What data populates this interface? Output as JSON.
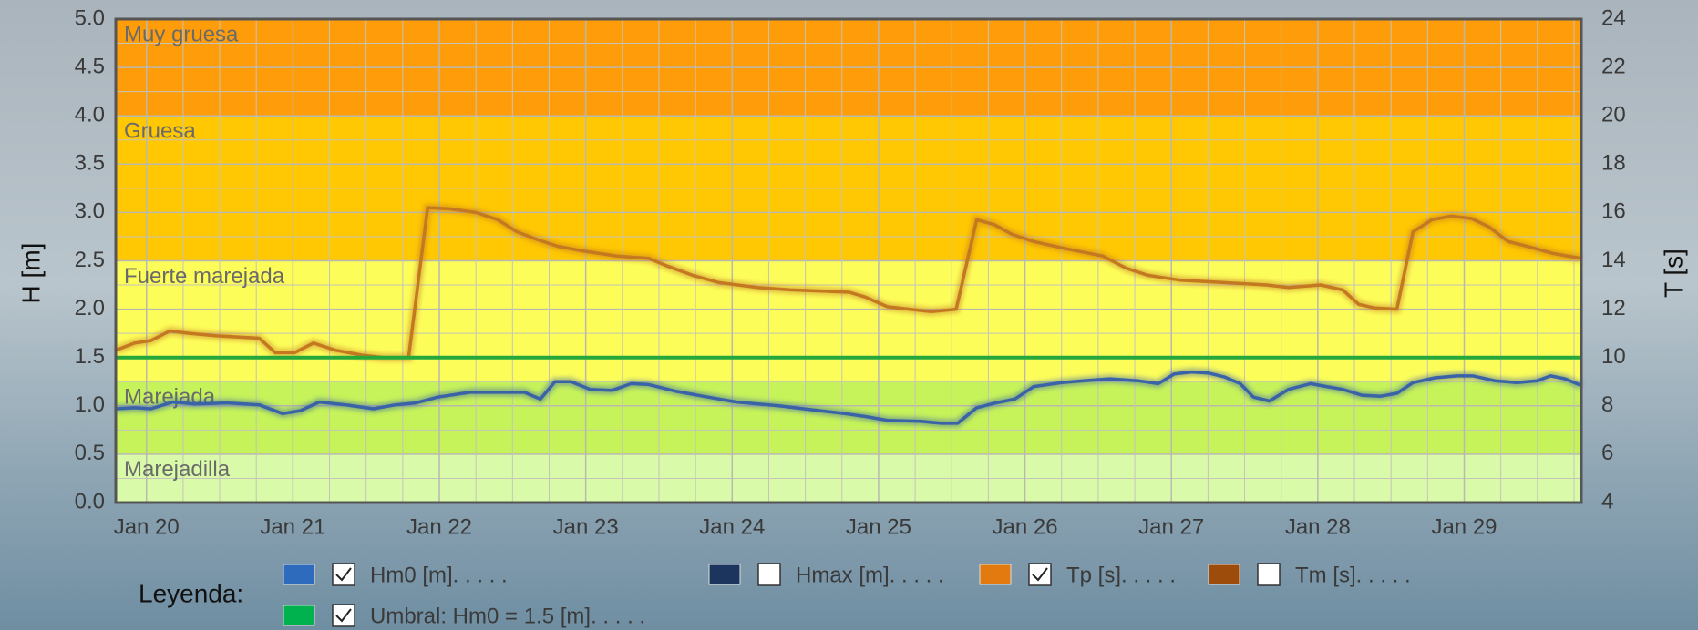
{
  "chart_data": {
    "type": "line",
    "ylabel": "H [m]",
    "y2label": "T [s]",
    "xlim": [
      19.79,
      29.8
    ],
    "xticks": [
      {
        "value": 20,
        "label": "Jan 20"
      },
      {
        "value": 21,
        "label": "Jan 21"
      },
      {
        "value": 22,
        "label": "Jan 22"
      },
      {
        "value": 23,
        "label": "Jan 23"
      },
      {
        "value": 24,
        "label": "Jan 24"
      },
      {
        "value": 25,
        "label": "Jan 25"
      },
      {
        "value": 26,
        "label": "Jan 26"
      },
      {
        "value": 27,
        "label": "Jan 27"
      },
      {
        "value": 28,
        "label": "Jan 28"
      },
      {
        "value": 29,
        "label": "Jan 29"
      }
    ],
    "ylim": [
      0,
      5
    ],
    "yticks": [
      {
        "value": 0,
        "label": "0.0"
      },
      0.5,
      {
        "value": 1,
        "label": "1.0"
      },
      1.5,
      {
        "value": 2,
        "label": "2.0"
      },
      2.5,
      {
        "value": 3,
        "label": "3.0"
      },
      3.5,
      {
        "value": 4,
        "label": "4.0"
      },
      4.5,
      {
        "value": 5,
        "label": "5.0"
      }
    ],
    "y2lim": [
      4,
      24
    ],
    "y2ticks": [
      4,
      6,
      8,
      10,
      12,
      14,
      16,
      18,
      20,
      22,
      24
    ],
    "grid": true,
    "bands": [
      {
        "label": "Marejadilla",
        "from": 0,
        "to": 0.5,
        "color": "#d9fba9"
      },
      {
        "label": "Marejada",
        "from": 0.5,
        "to": 1.25,
        "color": "#c6f25a"
      },
      {
        "label": "Fuerte marejada",
        "from": 1.25,
        "to": 2.5,
        "color": "#fdfd5a"
      },
      {
        "label": "Gruesa",
        "from": 2.5,
        "to": 4,
        "color": "#ffc802"
      },
      {
        "label": "Muy gruesa",
        "from": 4,
        "to": 5,
        "color": "#ff9c0a"
      }
    ],
    "legend": {
      "title": "Leyenda:"
    },
    "series": [
      {
        "name": "Hm0 [m]. . . . .",
        "color": "#2f6bbd",
        "line_color": "#3a62a6",
        "checked": true,
        "axis": "y",
        "x": [
          19.79,
          19.92,
          20.03,
          20.18,
          20.33,
          20.55,
          20.77,
          20.93,
          21.05,
          21.18,
          21.36,
          21.55,
          21.7,
          21.84,
          21.99,
          22.21,
          22.47,
          22.58,
          22.69,
          22.79,
          22.9,
          23.03,
          23.18,
          23.31,
          23.43,
          23.62,
          23.8,
          24.03,
          24.32,
          24.54,
          24.77,
          24.91,
          25.06,
          25.29,
          25.43,
          25.54,
          25.67,
          25.8,
          25.93,
          26.06,
          26.25,
          26.4,
          26.58,
          26.77,
          26.91,
          27.02,
          27.14,
          27.25,
          27.36,
          27.47,
          27.56,
          27.67,
          27.8,
          27.95,
          28.06,
          28.17,
          28.3,
          28.43,
          28.54,
          28.65,
          28.8,
          28.95,
          29.06,
          29.21,
          29.36,
          29.5,
          29.59,
          29.69,
          29.8
        ],
        "values": [
          0.97,
          0.98,
          0.97,
          1.04,
          1.02,
          1.03,
          1.01,
          0.92,
          0.95,
          1.04,
          1.01,
          0.97,
          1.01,
          1.03,
          1.09,
          1.14,
          1.14,
          1.14,
          1.07,
          1.25,
          1.25,
          1.17,
          1.16,
          1.23,
          1.22,
          1.15,
          1.1,
          1.04,
          1.0,
          0.96,
          0.92,
          0.89,
          0.85,
          0.84,
          0.82,
          0.82,
          0.98,
          1.03,
          1.07,
          1.2,
          1.24,
          1.26,
          1.28,
          1.26,
          1.23,
          1.33,
          1.35,
          1.34,
          1.3,
          1.23,
          1.09,
          1.05,
          1.17,
          1.23,
          1.2,
          1.17,
          1.11,
          1.1,
          1.13,
          1.24,
          1.29,
          1.31,
          1.31,
          1.26,
          1.24,
          1.26,
          1.31,
          1.28,
          1.21
        ]
      },
      {
        "name": "Hmax [m]. . . . .",
        "color": "#1c355e",
        "checked": false,
        "axis": "y"
      },
      {
        "name": "Tp [s]. . . . .",
        "color": "#e27a10",
        "line_color": "#c4781f",
        "checked": true,
        "axis": "y2",
        "x": [
          19.79,
          19.92,
          20.03,
          20.16,
          20.29,
          20.47,
          20.62,
          20.77,
          20.88,
          21.01,
          21.14,
          21.29,
          21.47,
          21.62,
          21.79,
          21.92,
          22.07,
          22.25,
          22.4,
          22.53,
          22.66,
          22.81,
          22.99,
          23.21,
          23.43,
          23.55,
          23.73,
          23.91,
          24.17,
          24.4,
          24.62,
          24.8,
          24.91,
          25.06,
          25.21,
          25.36,
          25.53,
          25.67,
          25.79,
          25.91,
          26.06,
          26.28,
          26.53,
          26.69,
          26.84,
          27.06,
          27.36,
          27.65,
          27.8,
          28.02,
          28.17,
          28.28,
          28.39,
          28.54,
          28.65,
          28.78,
          28.91,
          29.05,
          29.17,
          29.3,
          29.43,
          29.61,
          29.8
        ],
        "values": [
          10.3,
          10.6,
          10.7,
          11.1,
          11.0,
          10.9,
          10.85,
          10.8,
          10.2,
          10.2,
          10.6,
          10.3,
          10.1,
          10.0,
          10.0,
          16.2,
          16.15,
          16.0,
          15.7,
          15.2,
          14.9,
          14.6,
          14.4,
          14.2,
          14.1,
          13.8,
          13.4,
          13.1,
          12.9,
          12.8,
          12.75,
          12.7,
          12.5,
          12.1,
          12.0,
          11.9,
          12.0,
          15.7,
          15.5,
          15.1,
          14.8,
          14.5,
          14.2,
          13.7,
          13.4,
          13.2,
          13.1,
          13.0,
          12.9,
          13.0,
          12.8,
          12.2,
          12.05,
          12.0,
          15.2,
          15.7,
          15.85,
          15.75,
          15.4,
          14.8,
          14.6,
          14.3,
          14.1
        ]
      },
      {
        "name": "Tm [s]. . . . .",
        "color": "#9e4c0b",
        "checked": false,
        "axis": "y2"
      },
      {
        "name": "Umbral: Hm0 = 1.5 [m]. . . . .",
        "color": "#00b24d",
        "line_color": "#27a83a",
        "checked": true,
        "axis": "y",
        "value": 1.5
      }
    ]
  }
}
